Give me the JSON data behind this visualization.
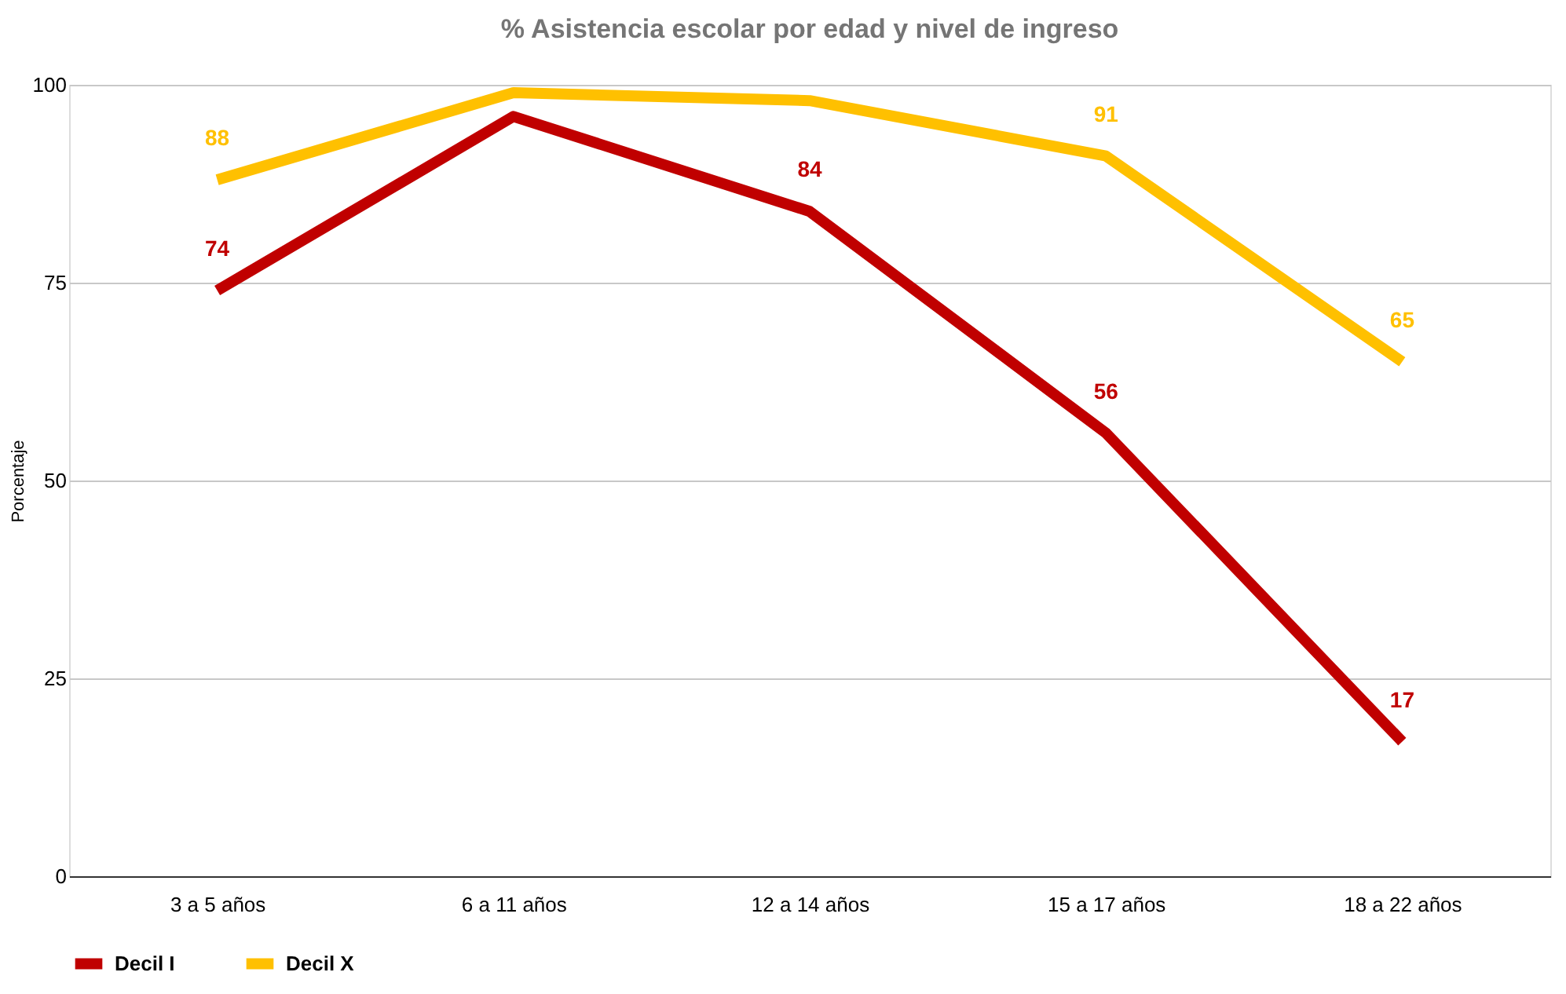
{
  "chart_data": {
    "type": "line",
    "title": "% Asistencia escolar por edad y  nivel de ingreso",
    "ylabel": "Porcentaje",
    "categories": [
      "3 a 5 años",
      "6 a 11 años",
      "12 a 14 años",
      "15 a 17 años",
      "18 a 22 años"
    ],
    "series": [
      {
        "name": "Decil I",
        "color": "#c00000",
        "values": [
          74,
          96,
          84,
          56,
          17
        ],
        "value_labels": [
          "74",
          null,
          "84",
          "56",
          "17"
        ]
      },
      {
        "name": "Decil X",
        "color": "#ffc000",
        "values": [
          88,
          99,
          98,
          91,
          65
        ],
        "value_labels": [
          "88",
          null,
          null,
          "91",
          "65"
        ]
      }
    ],
    "ylim": [
      0,
      100
    ],
    "yticks": [
      0,
      25,
      50,
      75,
      100
    ],
    "grid": "y",
    "legend": "bottom",
    "marker": "none",
    "line_style": "solid"
  }
}
